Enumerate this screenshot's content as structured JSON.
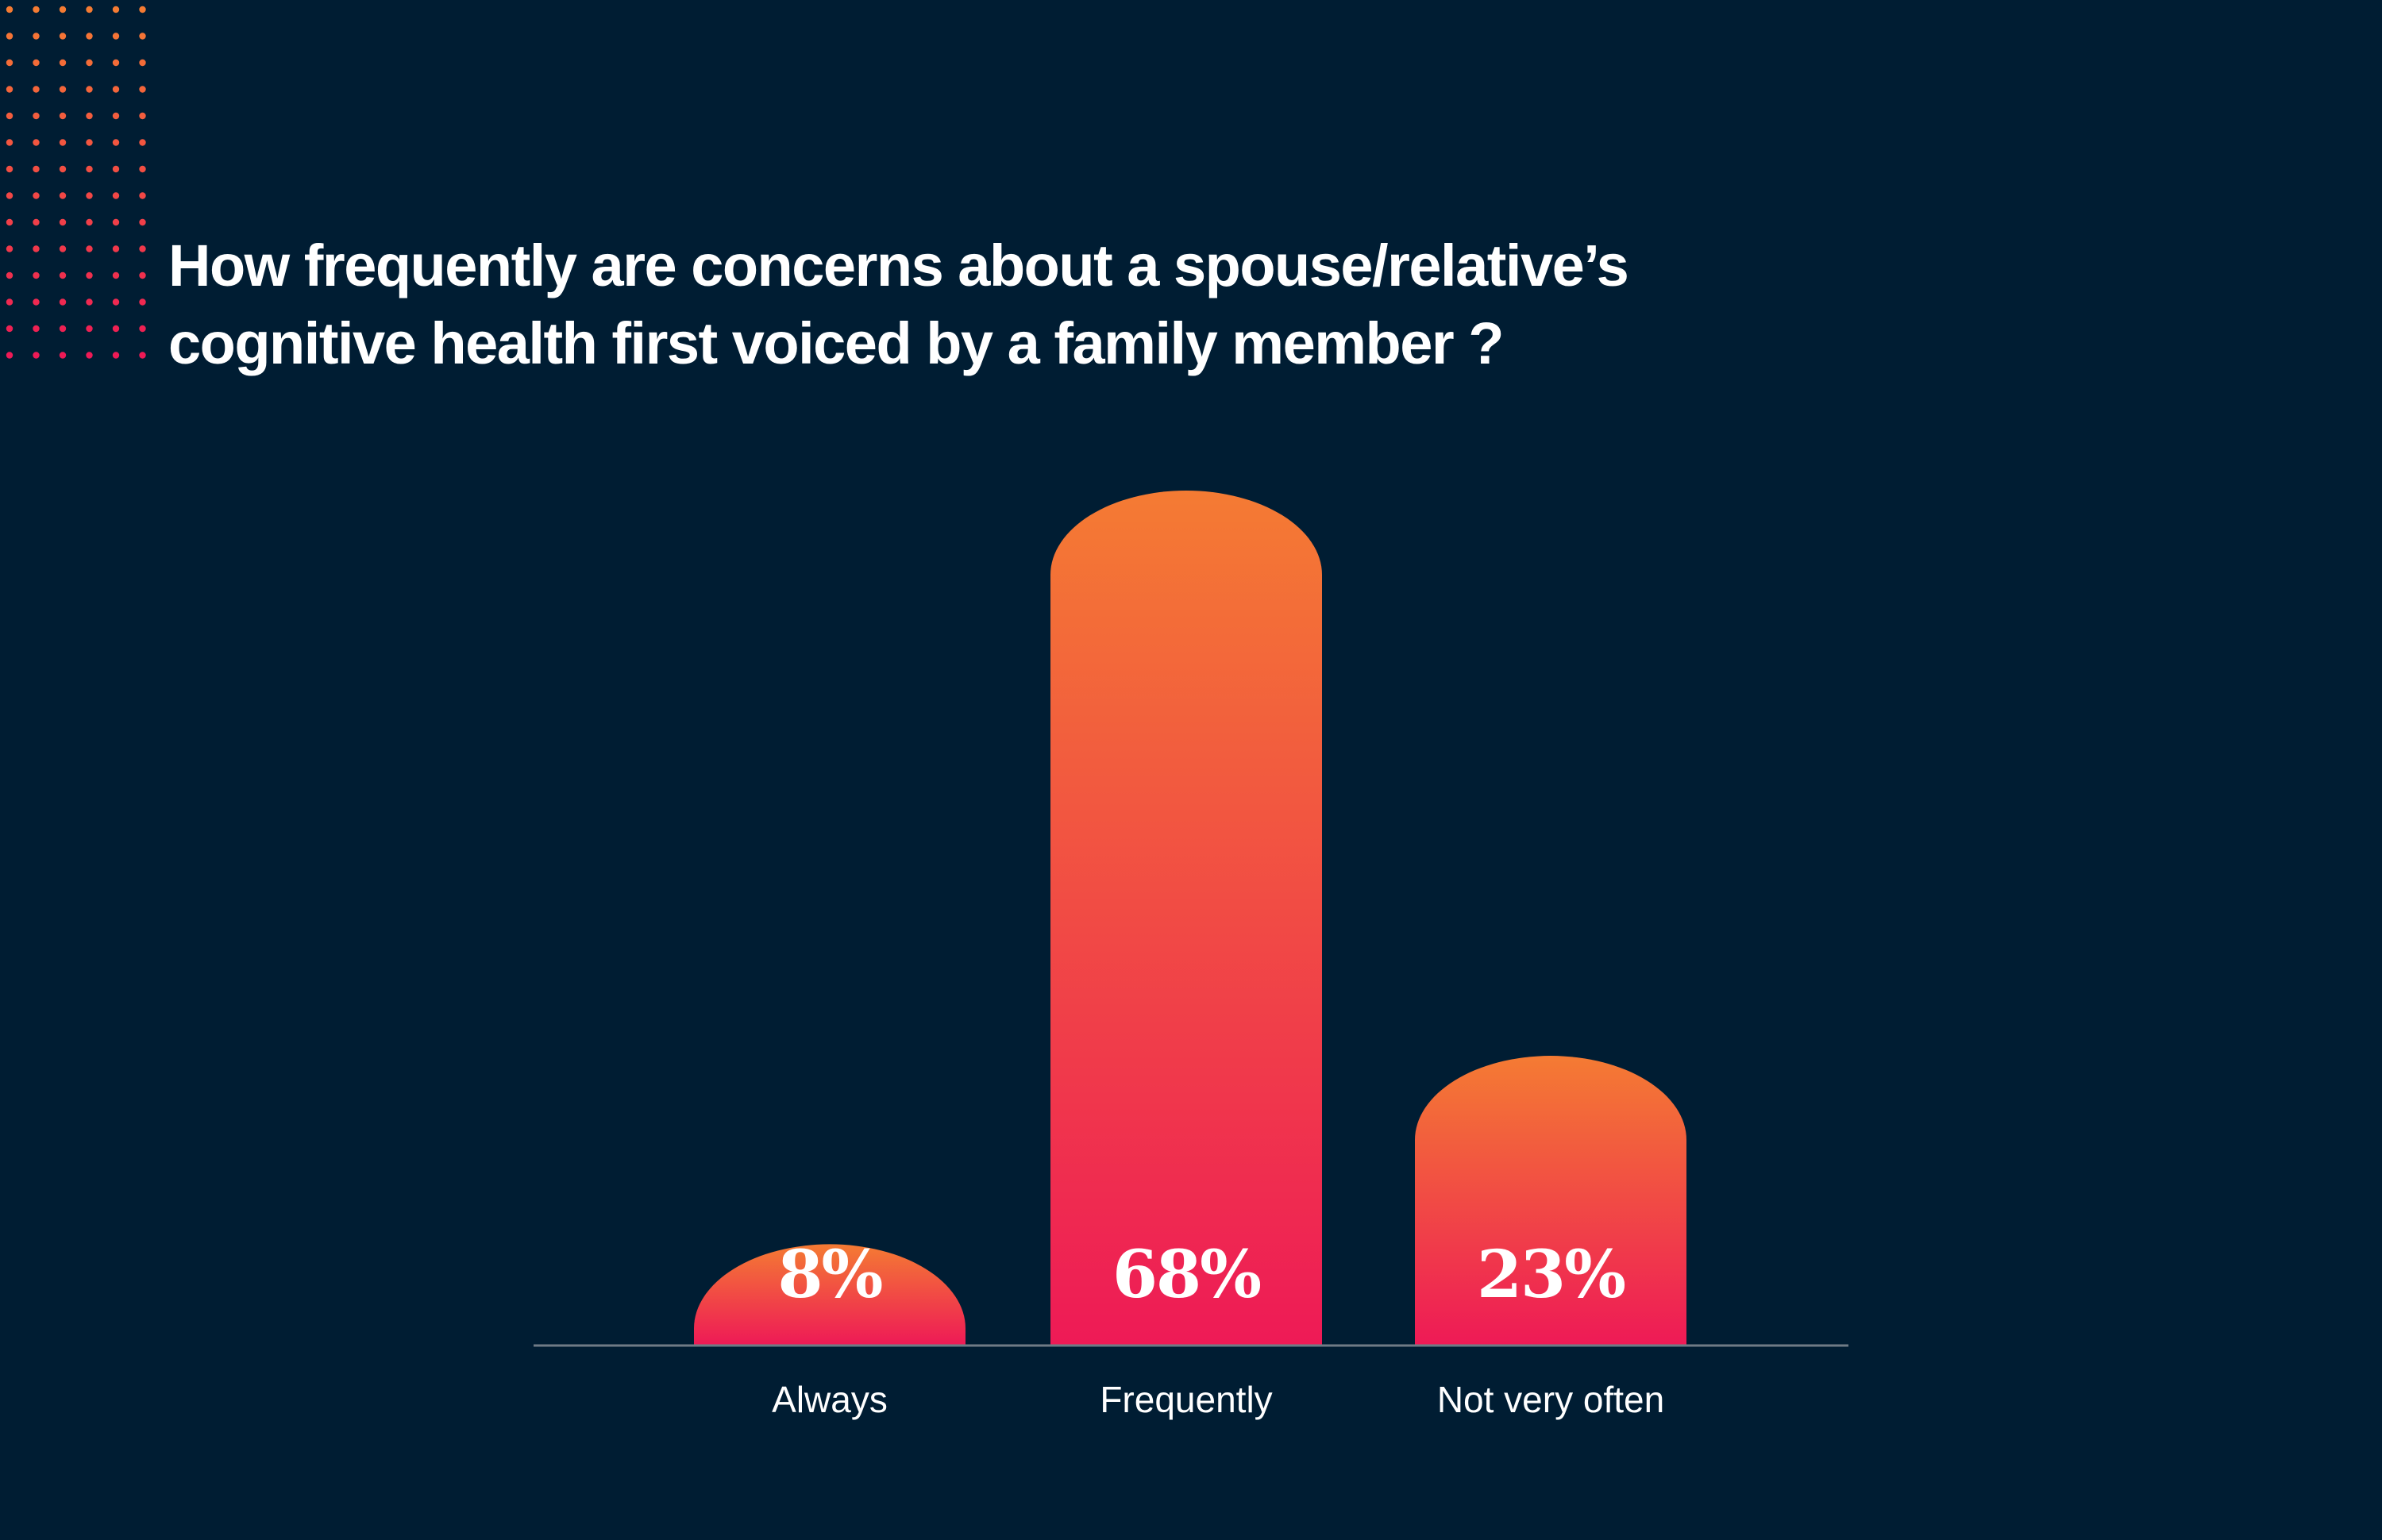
{
  "title_lines": [
    "How frequently are concerns about a spouse/relative’s",
    "cognitive health first voiced by a family member ?"
  ],
  "colors": {
    "background": "#001d33",
    "bar_top": "#f47b33",
    "bar_bottom": "#ee1a56",
    "axis": "#6f7b86",
    "dots_top": "#f47b33",
    "dots_bottom": "#ee1a56"
  },
  "chart_data": {
    "type": "bar",
    "categories": [
      "Always",
      "Frequently",
      "Not very often"
    ],
    "values": [
      8,
      68,
      23
    ],
    "value_labels": [
      "8%",
      "68%",
      "23%"
    ],
    "ylim": [
      0,
      68
    ],
    "grid": false,
    "legend": "none"
  }
}
